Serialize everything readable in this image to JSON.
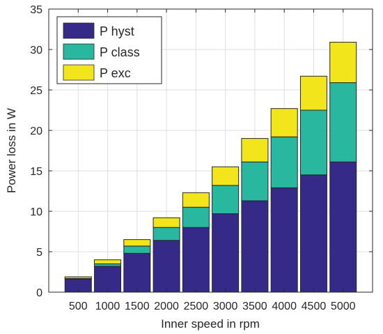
{
  "chart_data": {
    "type": "bar",
    "stacked": true,
    "categories": [
      "500",
      "1000",
      "1500",
      "2000",
      "2500",
      "3000",
      "3500",
      "4000",
      "4500",
      "5000"
    ],
    "series": [
      {
        "name": "P hyst",
        "color": "#352a87",
        "values": [
          1.6,
          3.2,
          4.8,
          6.4,
          8.0,
          9.7,
          11.3,
          12.9,
          14.5,
          16.1
        ]
      },
      {
        "name": "P class",
        "color": "#2ab7a0",
        "values": [
          0.1,
          0.3,
          0.9,
          1.6,
          2.5,
          3.5,
          4.8,
          6.3,
          8.0,
          9.8
        ]
      },
      {
        "name": "P exc",
        "color": "#f2e51b",
        "values": [
          0.2,
          0.5,
          0.8,
          1.2,
          1.8,
          2.3,
          2.9,
          3.5,
          4.2,
          5.0
        ]
      }
    ],
    "title": "",
    "xlabel": "Inner speed in rpm",
    "ylabel": "Power loss in W",
    "ylim": [
      0,
      35
    ],
    "yticks": [
      "0",
      "5",
      "10",
      "15",
      "20",
      "25",
      "30",
      "35"
    ],
    "grid": true,
    "legend_position": "top-left"
  }
}
